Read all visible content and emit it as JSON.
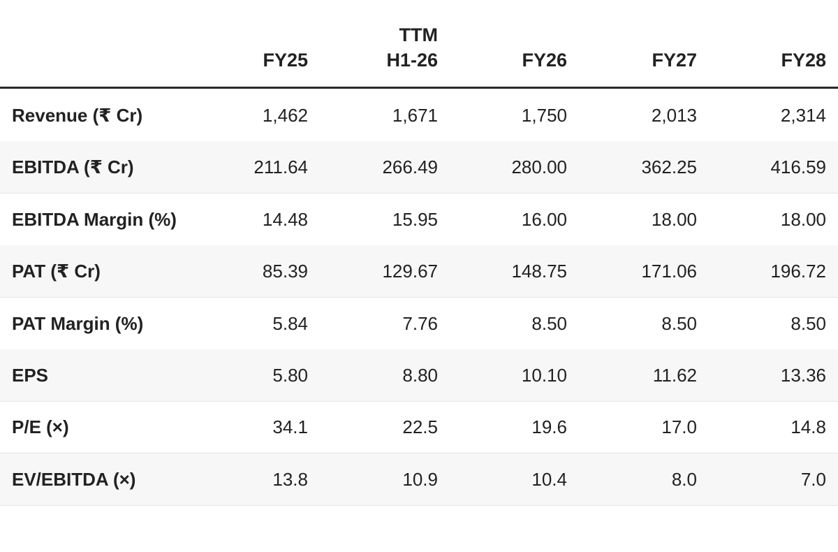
{
  "table": {
    "header": [
      [
        "FY25"
      ],
      [
        "TTM",
        "H1-26"
      ],
      [
        "FY26"
      ],
      [
        "FY27"
      ],
      [
        "FY28"
      ]
    ],
    "rows": [
      [
        "Revenue (₹ Cr)",
        "1,462",
        "1,671",
        "1,750",
        "2,013",
        "2,314"
      ],
      [
        "EBITDA (₹ Cr)",
        "211.64",
        "266.49",
        "280.00",
        "362.25",
        "416.59"
      ],
      [
        "EBITDA Margin (%)",
        "14.48",
        "15.95",
        "16.00",
        "18.00",
        "18.00"
      ],
      [
        "PAT (₹ Cr)",
        "85.39",
        "129.67",
        "148.75",
        "171.06",
        "196.72"
      ],
      [
        "PAT Margin (%)",
        "5.84",
        "7.76",
        "8.50",
        "8.50",
        "8.50"
      ],
      [
        "EPS",
        "5.80",
        "8.80",
        "10.10",
        "11.62",
        "13.36"
      ],
      [
        "P/E (×)",
        "34.1",
        "22.5",
        "19.6",
        "17.0",
        "14.8"
      ],
      [
        "EV/EBITDA (×)",
        "13.8",
        "10.9",
        "10.4",
        "8.0",
        "7.0"
      ]
    ]
  }
}
